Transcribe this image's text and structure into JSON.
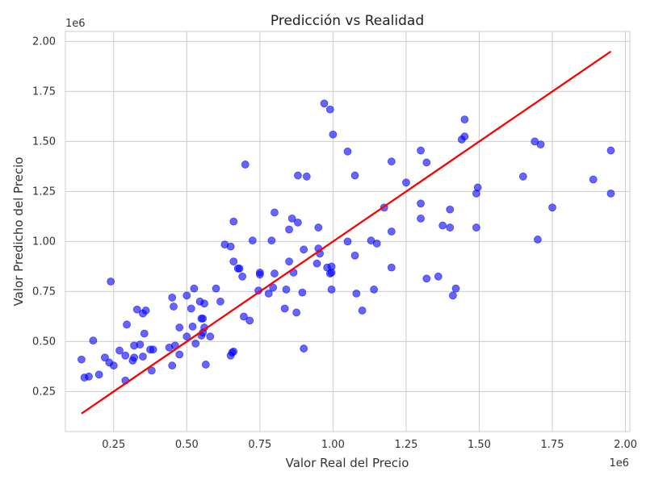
{
  "chart_data": {
    "type": "scatter",
    "title": "Predicción vs Realidad",
    "xlabel": "Valor Real del Precio",
    "ylabel": "Valor Predicho del Precio",
    "x_offset_text": "1e6",
    "y_offset_text": "1e6",
    "xlim": [
      85000,
      2015000
    ],
    "ylim": [
      50000,
      2050000
    ],
    "xticks": [
      0.25,
      0.5,
      0.75,
      1.0,
      1.25,
      1.5,
      1.75,
      2.0
    ],
    "xtick_labels": [
      "0.25",
      "0.50",
      "0.75",
      "1.00",
      "1.25",
      "1.50",
      "1.75",
      "2.00"
    ],
    "yticks": [
      0.25,
      0.5,
      0.75,
      1.0,
      1.25,
      1.5,
      1.75,
      2.0
    ],
    "ytick_labels": [
      "0.25",
      "0.50",
      "0.75",
      "1.00",
      "1.25",
      "1.50",
      "1.75",
      "2.00"
    ],
    "grid": true,
    "series": [
      {
        "kind": "scatter",
        "color": "#0000ff",
        "points": [
          [
            140000,
            410000
          ],
          [
            150000,
            320000
          ],
          [
            165000,
            325000
          ],
          [
            180000,
            505000
          ],
          [
            200000,
            335000
          ],
          [
            220000,
            420000
          ],
          [
            235000,
            395000
          ],
          [
            240000,
            800000
          ],
          [
            250000,
            380000
          ],
          [
            270000,
            455000
          ],
          [
            290000,
            430000
          ],
          [
            290000,
            305000
          ],
          [
            295000,
            585000
          ],
          [
            315000,
            405000
          ],
          [
            320000,
            420000
          ],
          [
            320000,
            480000
          ],
          [
            330000,
            660000
          ],
          [
            340000,
            485000
          ],
          [
            350000,
            640000
          ],
          [
            350000,
            425000
          ],
          [
            355000,
            540000
          ],
          [
            360000,
            655000
          ],
          [
            375000,
            460000
          ],
          [
            380000,
            355000
          ],
          [
            385000,
            460000
          ],
          [
            440000,
            470000
          ],
          [
            450000,
            380000
          ],
          [
            450000,
            720000
          ],
          [
            455000,
            675000
          ],
          [
            460000,
            480000
          ],
          [
            475000,
            570000
          ],
          [
            475000,
            435000
          ],
          [
            500000,
            525000
          ],
          [
            500000,
            730000
          ],
          [
            515000,
            665000
          ],
          [
            520000,
            575000
          ],
          [
            525000,
            765000
          ],
          [
            530000,
            490000
          ],
          [
            545000,
            700000
          ],
          [
            550000,
            615000
          ],
          [
            550000,
            530000
          ],
          [
            555000,
            615000
          ],
          [
            555000,
            545000
          ],
          [
            560000,
            690000
          ],
          [
            560000,
            570000
          ],
          [
            565000,
            385000
          ],
          [
            580000,
            525000
          ],
          [
            600000,
            765000
          ],
          [
            615000,
            700000
          ],
          [
            630000,
            985000
          ],
          [
            650000,
            975000
          ],
          [
            650000,
            430000
          ],
          [
            655000,
            445000
          ],
          [
            660000,
            900000
          ],
          [
            660000,
            450000
          ],
          [
            660000,
            1100000
          ],
          [
            675000,
            865000
          ],
          [
            680000,
            865000
          ],
          [
            690000,
            825000
          ],
          [
            695000,
            625000
          ],
          [
            700000,
            1385000
          ],
          [
            715000,
            605000
          ],
          [
            725000,
            1005000
          ],
          [
            745000,
            755000
          ],
          [
            750000,
            845000
          ],
          [
            750000,
            835000
          ],
          [
            780000,
            740000
          ],
          [
            790000,
            1005000
          ],
          [
            795000,
            770000
          ],
          [
            800000,
            1145000
          ],
          [
            800000,
            840000
          ],
          [
            835000,
            665000
          ],
          [
            840000,
            760000
          ],
          [
            850000,
            900000
          ],
          [
            850000,
            1060000
          ],
          [
            860000,
            1115000
          ],
          [
            865000,
            845000
          ],
          [
            875000,
            645000
          ],
          [
            880000,
            1330000
          ],
          [
            880000,
            1095000
          ],
          [
            895000,
            745000
          ],
          [
            900000,
            465000
          ],
          [
            900000,
            960000
          ],
          [
            910000,
            1325000
          ],
          [
            945000,
            890000
          ],
          [
            950000,
            1070000
          ],
          [
            955000,
            940000
          ],
          [
            950000,
            965000
          ],
          [
            970000,
            1690000
          ],
          [
            980000,
            870000
          ],
          [
            990000,
            840000
          ],
          [
            990000,
            1660000
          ],
          [
            995000,
            845000
          ],
          [
            995000,
            875000
          ],
          [
            995000,
            760000
          ],
          [
            1000000,
            1535000
          ],
          [
            1050000,
            1450000
          ],
          [
            1050000,
            1000000
          ],
          [
            1075000,
            930000
          ],
          [
            1075000,
            1330000
          ],
          [
            1080000,
            740000
          ],
          [
            1100000,
            655000
          ],
          [
            1130000,
            1005000
          ],
          [
            1140000,
            760000
          ],
          [
            1150000,
            990000
          ],
          [
            1175000,
            1170000
          ],
          [
            1200000,
            1400000
          ],
          [
            1200000,
            1050000
          ],
          [
            1200000,
            870000
          ],
          [
            1250000,
            1295000
          ],
          [
            1300000,
            1455000
          ],
          [
            1300000,
            1190000
          ],
          [
            1300000,
            1115000
          ],
          [
            1320000,
            1395000
          ],
          [
            1320000,
            815000
          ],
          [
            1360000,
            825000
          ],
          [
            1375000,
            1080000
          ],
          [
            1400000,
            1160000
          ],
          [
            1400000,
            1070000
          ],
          [
            1410000,
            730000
          ],
          [
            1420000,
            765000
          ],
          [
            1440000,
            1510000
          ],
          [
            1450000,
            1610000
          ],
          [
            1450000,
            1525000
          ],
          [
            1490000,
            1240000
          ],
          [
            1490000,
            1070000
          ],
          [
            1495000,
            1270000
          ],
          [
            1650000,
            1325000
          ],
          [
            1690000,
            1500000
          ],
          [
            1700000,
            1010000
          ],
          [
            1710000,
            1485000
          ],
          [
            1750000,
            1170000
          ],
          [
            1890000,
            1310000
          ],
          [
            1950000,
            1455000
          ],
          [
            1950000,
            1240000
          ]
        ]
      },
      {
        "kind": "line",
        "color": "#ff0000",
        "points": [
          [
            140000,
            140000
          ],
          [
            1950000,
            1950000
          ]
        ]
      }
    ]
  }
}
